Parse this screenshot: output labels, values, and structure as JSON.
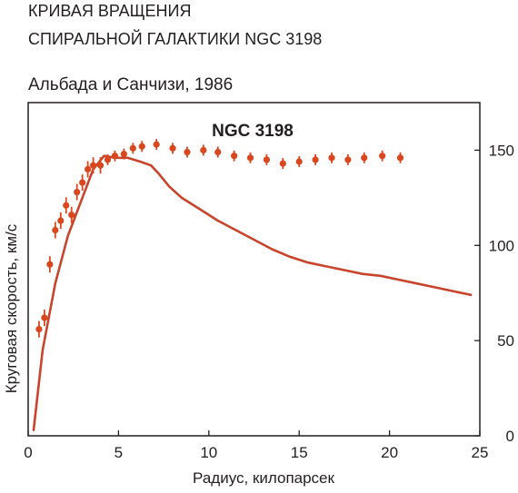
{
  "header": {
    "title_line1": "КРИВАЯ ВРАЩЕНИЯ",
    "title_line2": "СПИРАЛЬНОЙ ГАЛАКТИКИ NGC 3198",
    "source": "Альбада и Санчизи, 1986"
  },
  "colors": {
    "curve": "#c8442c",
    "points": "#d9471f",
    "frame": "#231f20"
  },
  "chart_data": {
    "type": "scatter",
    "title": "NGC 3198",
    "xlabel": "Радиус, килопарсек",
    "ylabel": "Круговая скорость, км/с",
    "xlim": [
      0,
      25
    ],
    "ylim": [
      0,
      175
    ],
    "x_ticks": [
      0,
      5,
      10,
      15,
      20,
      25
    ],
    "y_ticks": [
      0,
      50,
      100,
      150
    ],
    "y_axis_side": "right",
    "grid": false,
    "series": [
      {
        "type": "scatter_errorbar",
        "x": [
          0.6,
          0.9,
          1.2,
          1.5,
          1.8,
          2.1,
          2.4,
          2.7,
          3.0,
          3.3,
          3.6,
          4.0,
          4.4,
          4.8,
          5.3,
          5.8,
          6.3,
          7.1,
          8.0,
          8.8,
          9.7,
          10.5,
          11.4,
          12.3,
          13.2,
          14.1,
          15.0,
          15.9,
          16.8,
          17.7,
          18.6,
          19.6,
          20.6
        ],
        "y": [
          56,
          62,
          90,
          108,
          113,
          121,
          116,
          128,
          133,
          140,
          142,
          142,
          145,
          147,
          148,
          151,
          152,
          153,
          151,
          149,
          150,
          149,
          147,
          146,
          145,
          143,
          144,
          145,
          146,
          145,
          146,
          147,
          146
        ]
      },
      {
        "type": "line",
        "x": [
          0.3,
          0.8,
          1.5,
          2.2,
          3.0,
          3.6,
          4.2,
          4.8,
          5.5,
          6.2,
          6.8,
          7.2,
          7.8,
          8.5,
          9.5,
          10.5,
          11.5,
          12.5,
          13.5,
          14.5,
          15.5,
          16.5,
          17.5,
          18.5,
          19.5,
          20.5,
          21.5,
          22.5,
          23.5,
          24.5
        ],
        "y": [
          3,
          45,
          80,
          105,
          125,
          140,
          147,
          146,
          146,
          144,
          142,
          138,
          131,
          125,
          119,
          113,
          108,
          103,
          98,
          94,
          91,
          89,
          87,
          85,
          84,
          82,
          80,
          78,
          76,
          74
        ]
      }
    ]
  }
}
